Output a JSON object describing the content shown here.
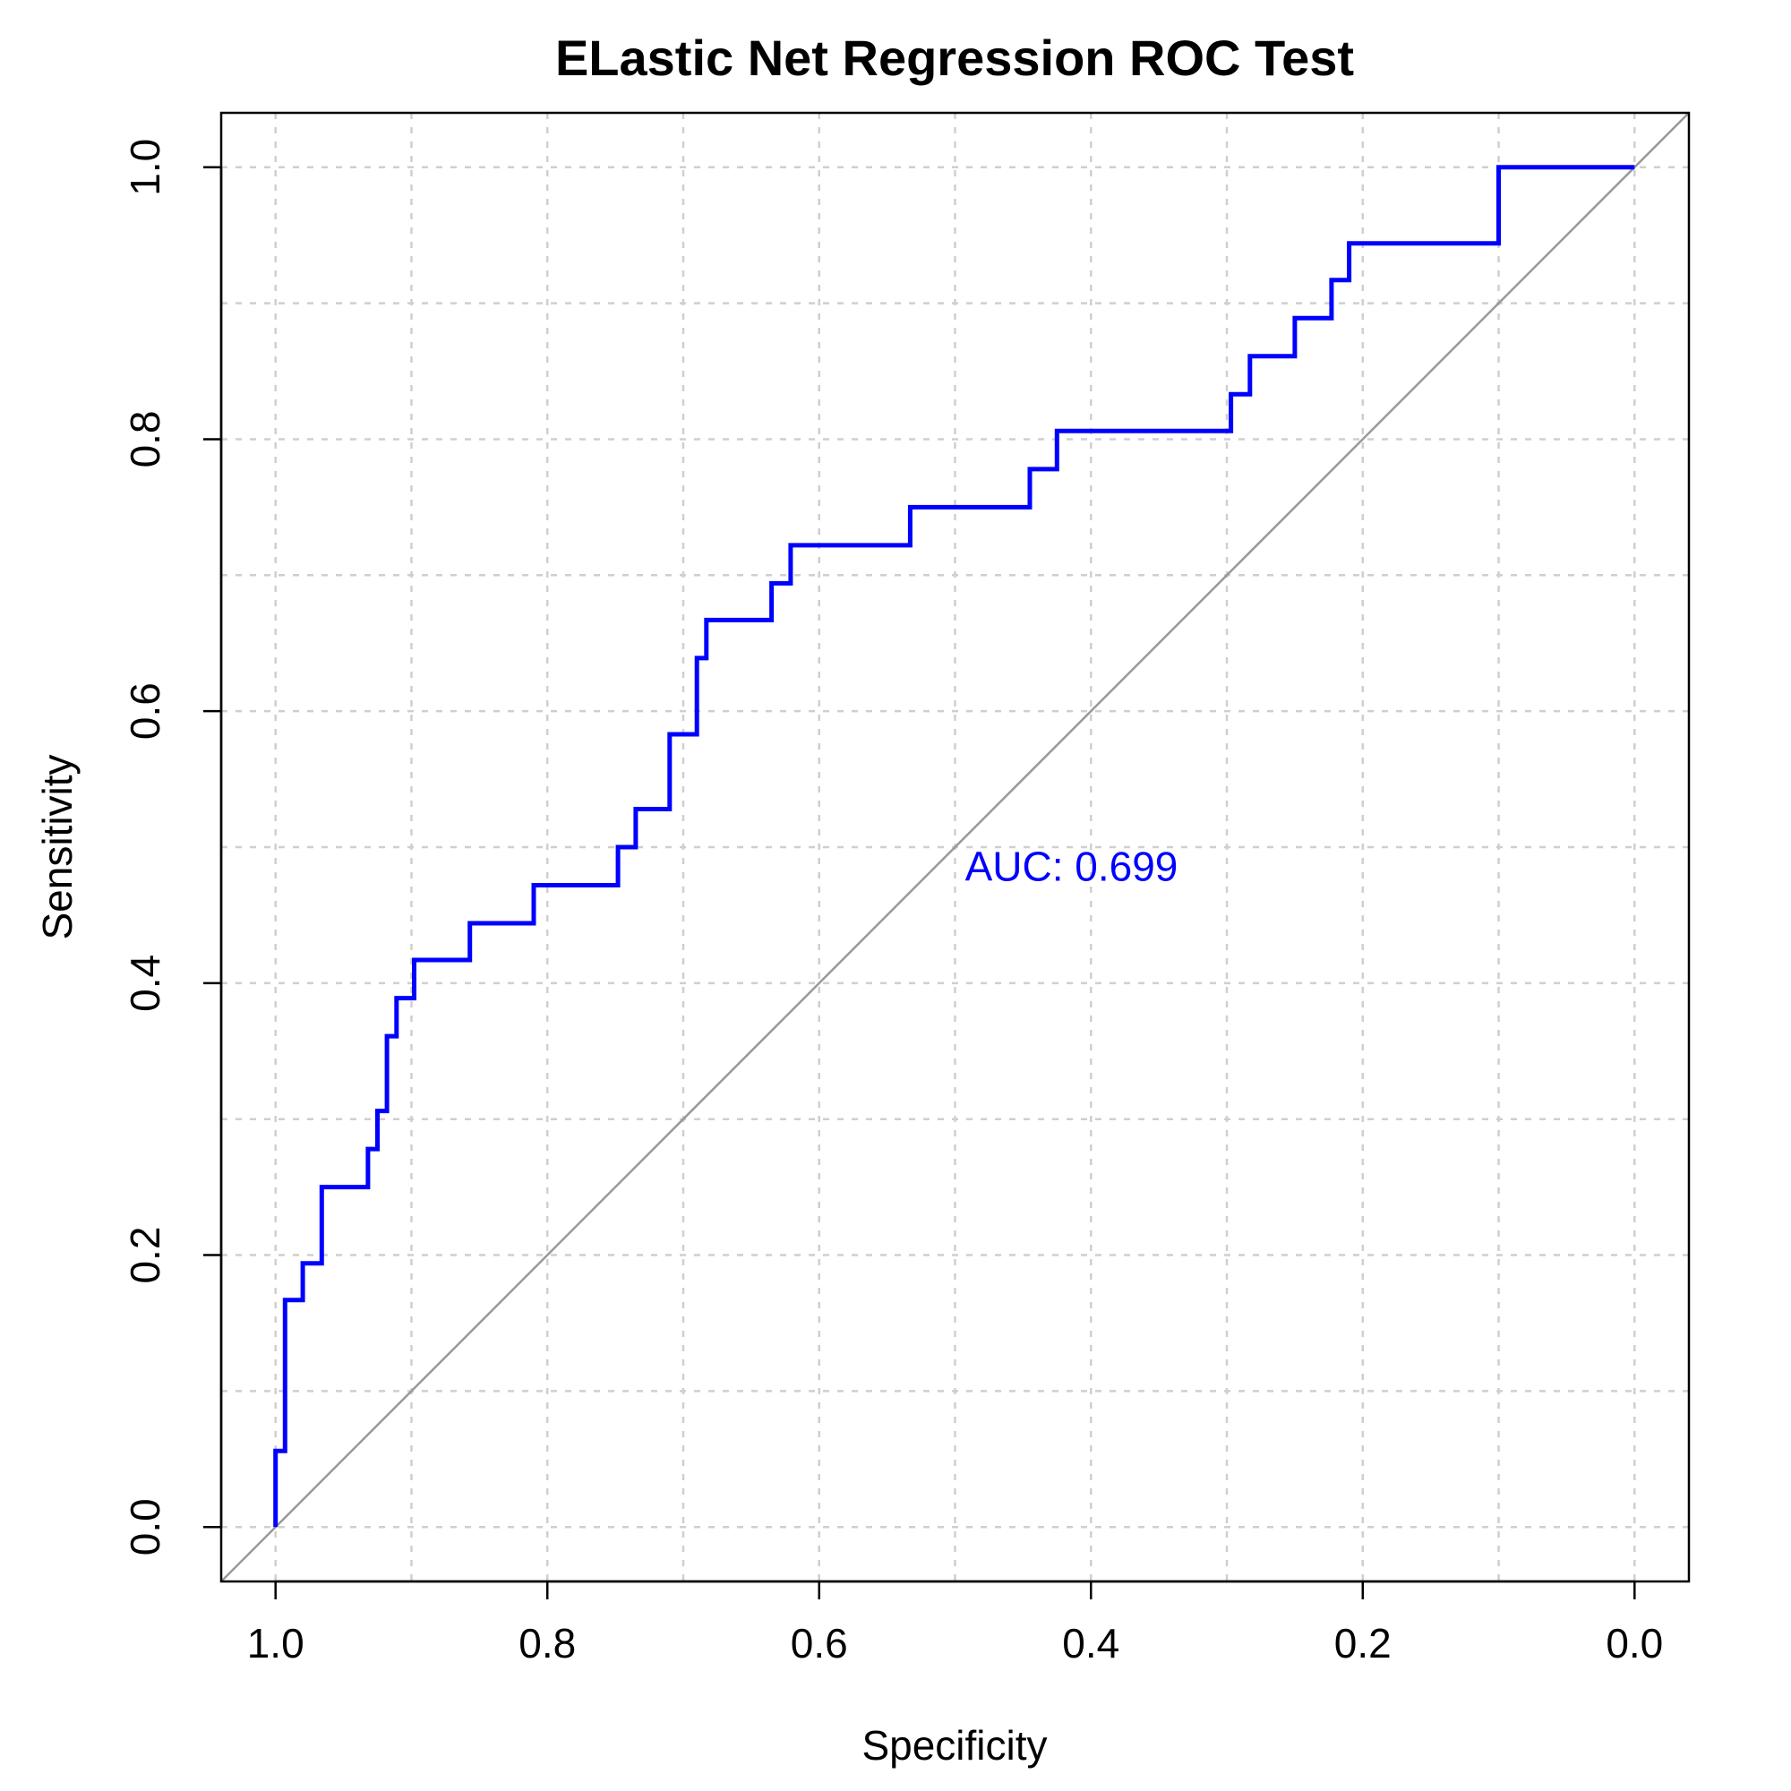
{
  "chart_data": {
    "type": "line",
    "title": "ELastic Net Regression ROC Test",
    "xlabel": "Specificity",
    "ylabel": "Sensitivity",
    "xlim": [
      1.04,
      -0.04
    ],
    "ylim": [
      -0.04,
      1.04
    ],
    "x_reversed": true,
    "grid": true,
    "x_ticks": [
      1.0,
      0.8,
      0.6,
      0.4,
      0.2,
      0.0
    ],
    "x_tick_labels": [
      "1.0",
      "0.8",
      "0.6",
      "0.4",
      "0.2",
      "0.0"
    ],
    "y_ticks": [
      0.0,
      0.2,
      0.4,
      0.6,
      0.8,
      1.0
    ],
    "y_tick_labels": [
      "0.0",
      "0.2",
      "0.4",
      "0.6",
      "0.8",
      "1.0"
    ],
    "annotation": {
      "text": "AUC: 0.699",
      "x": 0.5,
      "y": 0.486,
      "color": "#0000ff"
    },
    "series": [
      {
        "color": "#0000ff",
        "style": "step",
        "points": [
          [
            1.0,
            0.0
          ],
          [
            1.0,
            0.056
          ],
          [
            0.993,
            0.056
          ],
          [
            0.993,
            0.167
          ],
          [
            0.98,
            0.167
          ],
          [
            0.98,
            0.194
          ],
          [
            0.966,
            0.194
          ],
          [
            0.966,
            0.25
          ],
          [
            0.932,
            0.25
          ],
          [
            0.932,
            0.278
          ],
          [
            0.925,
            0.278
          ],
          [
            0.925,
            0.306
          ],
          [
            0.918,
            0.306
          ],
          [
            0.918,
            0.361
          ],
          [
            0.911,
            0.361
          ],
          [
            0.911,
            0.389
          ],
          [
            0.898,
            0.389
          ],
          [
            0.898,
            0.417
          ],
          [
            0.857,
            0.417
          ],
          [
            0.857,
            0.444
          ],
          [
            0.81,
            0.444
          ],
          [
            0.81,
            0.472
          ],
          [
            0.748,
            0.472
          ],
          [
            0.748,
            0.5
          ],
          [
            0.735,
            0.5
          ],
          [
            0.735,
            0.528
          ],
          [
            0.71,
            0.528
          ],
          [
            0.71,
            0.583
          ],
          [
            0.69,
            0.583
          ],
          [
            0.69,
            0.639
          ],
          [
            0.683,
            0.639
          ],
          [
            0.683,
            0.667
          ],
          [
            0.635,
            0.667
          ],
          [
            0.635,
            0.694
          ],
          [
            0.621,
            0.694
          ],
          [
            0.621,
            0.722
          ],
          [
            0.533,
            0.722
          ],
          [
            0.533,
            0.75
          ],
          [
            0.445,
            0.75
          ],
          [
            0.445,
            0.778
          ],
          [
            0.425,
            0.778
          ],
          [
            0.425,
            0.806
          ],
          [
            0.297,
            0.806
          ],
          [
            0.297,
            0.833
          ],
          [
            0.283,
            0.833
          ],
          [
            0.283,
            0.861
          ],
          [
            0.25,
            0.861
          ],
          [
            0.25,
            0.889
          ],
          [
            0.223,
            0.889
          ],
          [
            0.223,
            0.917
          ],
          [
            0.21,
            0.917
          ],
          [
            0.21,
            0.944
          ],
          [
            0.1,
            0.944
          ],
          [
            0.1,
            1.0
          ],
          [
            0.0,
            1.0
          ]
        ]
      },
      {
        "color": "#999999",
        "style": "reference-diagonal",
        "points": [
          [
            1.04,
            -0.04
          ],
          [
            -0.04,
            1.04
          ]
        ]
      }
    ]
  }
}
